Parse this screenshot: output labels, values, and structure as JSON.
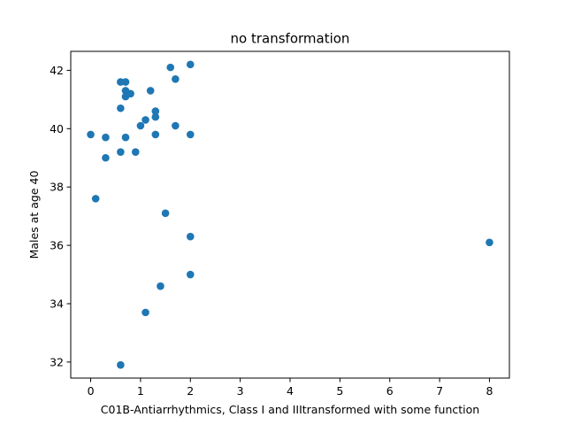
{
  "chart_data": {
    "type": "scatter",
    "title": "no transformation",
    "xlabel": "C01B-Antiarrhythmics, Class I and IIItransformed with some function",
    "ylabel": "Males at age 40",
    "xlim": [
      -0.4,
      8.4
    ],
    "ylim": [
      31.45,
      42.65
    ],
    "xticks": [
      0,
      1,
      2,
      3,
      4,
      5,
      6,
      7,
      8
    ],
    "xtick_labels": [
      "0",
      "1",
      "2",
      "3",
      "4",
      "5",
      "6",
      "7",
      "8"
    ],
    "yticks": [
      32,
      34,
      36,
      38,
      40,
      42
    ],
    "ytick_labels": [
      "32",
      "34",
      "36",
      "38",
      "40",
      "42"
    ],
    "grid": false,
    "marker_color": "#1f77b4",
    "series": [
      {
        "x": [
          0.6,
          0.7,
          0.8,
          1.6,
          2.0,
          1.7,
          0.7,
          0.7,
          1.2,
          0.6,
          1.3,
          1.3,
          1.1,
          1.0,
          1.7,
          0.0,
          0.3,
          0.7,
          1.3,
          2.0,
          0.6,
          0.9,
          0.3,
          0.1,
          1.5,
          2.0,
          8.0,
          2.0,
          1.4,
          1.1,
          0.6
        ],
        "y": [
          41.6,
          41.6,
          41.2,
          42.1,
          42.2,
          41.7,
          41.3,
          41.1,
          41.3,
          40.7,
          40.6,
          40.4,
          40.3,
          40.1,
          40.1,
          39.8,
          39.7,
          39.7,
          39.8,
          39.8,
          39.2,
          39.2,
          39.0,
          37.6,
          37.1,
          36.3,
          36.1,
          35.0,
          34.6,
          33.7,
          31.9
        ]
      }
    ]
  }
}
